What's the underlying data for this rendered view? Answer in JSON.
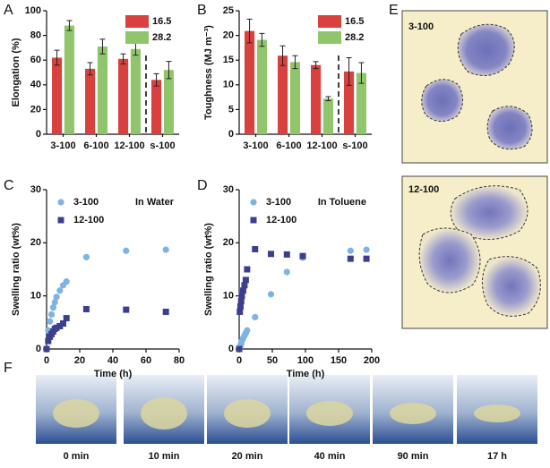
{
  "chart_data": [
    {
      "type": "bar",
      "ylabel": "Elongation (%)",
      "categories": [
        "3-100",
        "6-100",
        "12-100",
        "s-100"
      ],
      "series": [
        {
          "name": "16.5",
          "color": "#d9413f",
          "values": [
            62,
            53,
            61,
            44
          ],
          "errors": [
            6,
            5,
            4,
            5
          ]
        },
        {
          "name": "28.2",
          "color": "#90c56b",
          "values": [
            88,
            71,
            69,
            52
          ],
          "errors": [
            4,
            6,
            5,
            7
          ]
        }
      ],
      "ylim": [
        0,
        100
      ],
      "yticks": [
        0,
        20,
        40,
        60,
        80,
        100
      ],
      "divider": true,
      "legend": "upper right"
    },
    {
      "type": "bar",
      "ylabel": "Toughness (MJ m⁻³)",
      "categories": [
        "3-100",
        "6-100",
        "12-100",
        "s-100"
      ],
      "series": [
        {
          "name": "16.5",
          "color": "#d9413f",
          "values": [
            20.9,
            15.9,
            14.0,
            12.7
          ],
          "errors": [
            2.4,
            2.0,
            0.7,
            2.8
          ]
        },
        {
          "name": "28.2",
          "color": "#90c56b",
          "values": [
            19.1,
            14.6,
            7.2,
            12.4
          ],
          "errors": [
            1.3,
            1.3,
            0.4,
            2.1
          ]
        }
      ],
      "ylim": [
        0,
        25
      ],
      "yticks": [
        0,
        5,
        10,
        15,
        20,
        25
      ],
      "divider": true,
      "legend": "upper right"
    },
    {
      "type": "scatter",
      "xlabel": "Time (h)",
      "ylabel": "Swelling ratio (wt%)",
      "annotation": "In Water",
      "series": [
        {
          "name": "3-100",
          "color": "#7fb2e5",
          "marker": "circle",
          "x": [
            0,
            1,
            2,
            3,
            4,
            5,
            6,
            8,
            10,
            12,
            24,
            48,
            72
          ],
          "values": [
            0,
            3.5,
            5.2,
            6.5,
            7.8,
            8.8,
            9.8,
            11.0,
            12.0,
            12.7,
            17.3,
            18.5,
            18.7
          ]
        },
        {
          "name": "12-100",
          "color": "#3c3f8f",
          "marker": "square",
          "x": [
            0,
            1,
            2,
            3,
            4,
            5,
            6,
            8,
            10,
            12,
            24,
            48,
            72
          ],
          "values": [
            0,
            1.5,
            2.3,
            2.8,
            3.3,
            3.8,
            4.0,
            4.3,
            4.8,
            5.8,
            7.5,
            7.4,
            7.0
          ]
        }
      ],
      "xlim": [
        0,
        80
      ],
      "xticks": [
        0,
        20,
        40,
        60,
        80
      ],
      "ylim": [
        0,
        30
      ],
      "yticks": [
        0,
        10,
        20,
        30
      ],
      "legend": "upper left"
    },
    {
      "type": "scatter",
      "xlabel": "Time (h)",
      "ylabel": "Swelling ratio (wt%)",
      "annotation": "In Toluene",
      "series": [
        {
          "name": "3-100",
          "color": "#7fb2e5",
          "marker": "circle",
          "x": [
            0,
            1,
            2,
            3,
            4,
            6,
            8,
            10,
            12,
            24,
            48,
            72,
            96,
            168,
            192
          ],
          "values": [
            0,
            0.3,
            0.7,
            1.0,
            1.5,
            2.0,
            2.5,
            3.0,
            3.5,
            6.0,
            10.3,
            14.5,
            17.2,
            18.5,
            18.7
          ]
        },
        {
          "name": "12-100",
          "color": "#3c3f8f",
          "marker": "square",
          "x": [
            0,
            1,
            2,
            3,
            4,
            6,
            8,
            10,
            12,
            24,
            48,
            72,
            96,
            168,
            192
          ],
          "values": [
            0,
            7,
            8,
            9,
            10,
            11,
            12,
            13,
            15,
            18.8,
            17.9,
            17.8,
            17.5,
            17.0,
            17.0
          ]
        }
      ],
      "xlim": [
        0,
        200
      ],
      "xticks": [
        0,
        50,
        100,
        150,
        200
      ],
      "ylim": [
        0,
        30
      ],
      "yticks": [
        0,
        10,
        20,
        30
      ],
      "legend": "upper left"
    }
  ],
  "panel_labels": [
    "A",
    "B",
    "C",
    "D",
    "E",
    "F"
  ],
  "panel_e": {
    "labels": [
      "3-100",
      "12-100"
    ]
  },
  "panel_f": {
    "captions": [
      "0 min",
      "10 min",
      "20 min",
      "40 min",
      "90 min",
      "17 h"
    ]
  }
}
